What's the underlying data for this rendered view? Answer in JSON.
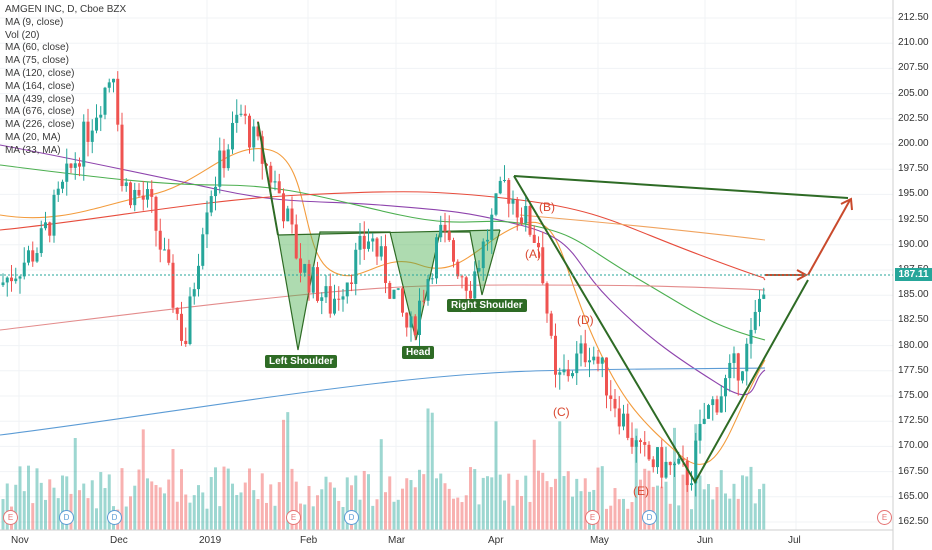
{
  "legend": {
    "title": "AMGEN INC, D, Cboe BZX",
    "indicators": [
      "MA (9, close)",
      "Vol (20)",
      "MA (60, close)",
      "MA (75, close)",
      "MA (120, close)",
      "MA (164, close)",
      "MA (439, close)",
      "MA (676, close)",
      "MA (226, close)",
      "MA (20, MA)",
      "MA (33, MA)"
    ]
  },
  "pattern_labels": {
    "left_shoulder": "Left Shoulder",
    "head": "Head",
    "right_shoulder": "Right Shoulder"
  },
  "wave_labels": {
    "a": "(A)",
    "b": "(B)",
    "c": "(C)",
    "d": "(D)",
    "e": "(E)"
  },
  "last_price": "187.11",
  "event_markers": [
    "E",
    "D",
    "D",
    "E",
    "D",
    "E",
    "D",
    "E"
  ],
  "colors": {
    "up": "#26a69a",
    "down": "#ef5350",
    "pattern_fill": "#4caf50",
    "pattern_line": "#2e6b25",
    "projection": "#c94a2c",
    "ma_orange": "#f39c3d",
    "ma_purple": "#8e44ad",
    "ma_green": "#4caf50",
    "ma_red": "#e74c3c",
    "ma_blue": "#5b9bd5"
  },
  "chart_data": {
    "type": "candlestick",
    "title": "AMGEN INC, D, Cboe BZX",
    "y_ticks": [
      "212.50",
      "210.00",
      "207.50",
      "205.00",
      "202.50",
      "200.00",
      "197.50",
      "195.00",
      "192.50",
      "190.00",
      "187.50",
      "185.00",
      "182.50",
      "180.00",
      "177.50",
      "175.00",
      "172.50",
      "170.00",
      "167.50",
      "165.00",
      "162.50"
    ],
    "x_ticks": [
      "Nov",
      "Dec",
      "2019",
      "Feb",
      "Mar",
      "Apr",
      "May",
      "Jun",
      "Jul"
    ],
    "ylim": [
      162.5,
      213.5
    ],
    "approx_close_path": [
      {
        "date": "Nov",
        "close": 186
      },
      {
        "date": "mid Nov",
        "close": 190
      },
      {
        "date": "late Nov",
        "close": 208
      },
      {
        "date": "Dec",
        "close": 196
      },
      {
        "date": "mid Dec",
        "close": 194
      },
      {
        "date": "late Dec",
        "close": 180
      },
      {
        "date": "2019",
        "close": 194
      },
      {
        "date": "mid Jan",
        "close": 203
      },
      {
        "date": "late Jan",
        "close": 195
      },
      {
        "date": "Feb",
        "close": 188
      },
      {
        "date": "mid Feb",
        "close": 184
      },
      {
        "date": "Mar",
        "close": 191
      },
      {
        "date": "mid Mar",
        "close": 181
      },
      {
        "date": "late Mar",
        "close": 191
      },
      {
        "date": "Apr",
        "close": 186
      },
      {
        "date": "early Apr",
        "close": 196
      },
      {
        "date": "mid Apr",
        "close": 190
      },
      {
        "date": "late Apr",
        "close": 176
      },
      {
        "date": "May",
        "close": 180
      },
      {
        "date": "mid May",
        "close": 169
      },
      {
        "date": "late May",
        "close": 167
      },
      {
        "date": "Jun",
        "close": 173
      },
      {
        "date": "mid Jun",
        "close": 180
      },
      {
        "date": "late Jun",
        "close": 187.11
      }
    ]
  }
}
